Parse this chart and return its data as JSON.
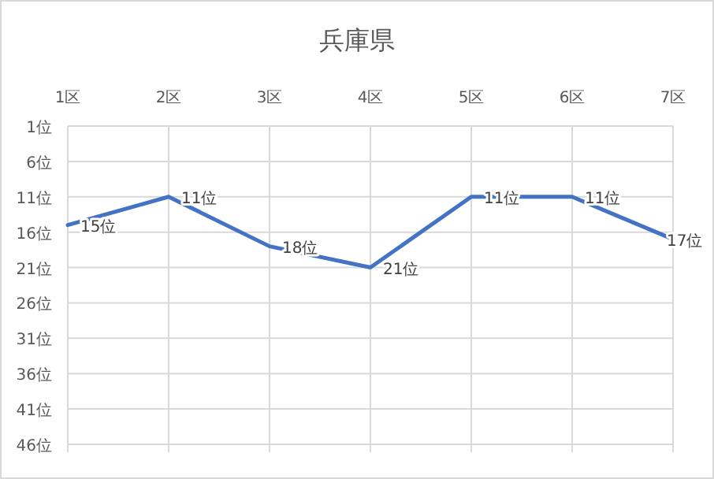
{
  "chart_data": {
    "type": "line",
    "title": "兵庫県",
    "categories": [
      "1区",
      "2区",
      "3区",
      "4区",
      "5区",
      "6区",
      "7区"
    ],
    "series": [
      {
        "color": "#4472c4",
        "values": [
          15,
          11,
          18,
          21,
          11,
          11,
          17
        ],
        "value_labels": [
          "15位",
          "11位",
          "18位",
          "21位",
          "11位",
          "11位",
          "17位"
        ]
      }
    ],
    "ylim": [
      46,
      1
    ],
    "yticks": [
      {
        "value": 1,
        "label": "1位"
      },
      {
        "value": 6,
        "label": "6位"
      },
      {
        "value": 11,
        "label": "11位"
      },
      {
        "value": 16,
        "label": "16位"
      },
      {
        "value": 21,
        "label": "21位"
      },
      {
        "value": 26,
        "label": "26位"
      },
      {
        "value": 31,
        "label": "31位"
      },
      {
        "value": 36,
        "label": "36位"
      },
      {
        "value": 41,
        "label": "41位"
      },
      {
        "value": 46,
        "label": "46位"
      }
    ],
    "grid": true,
    "marker": "none",
    "line_style": "solid"
  }
}
